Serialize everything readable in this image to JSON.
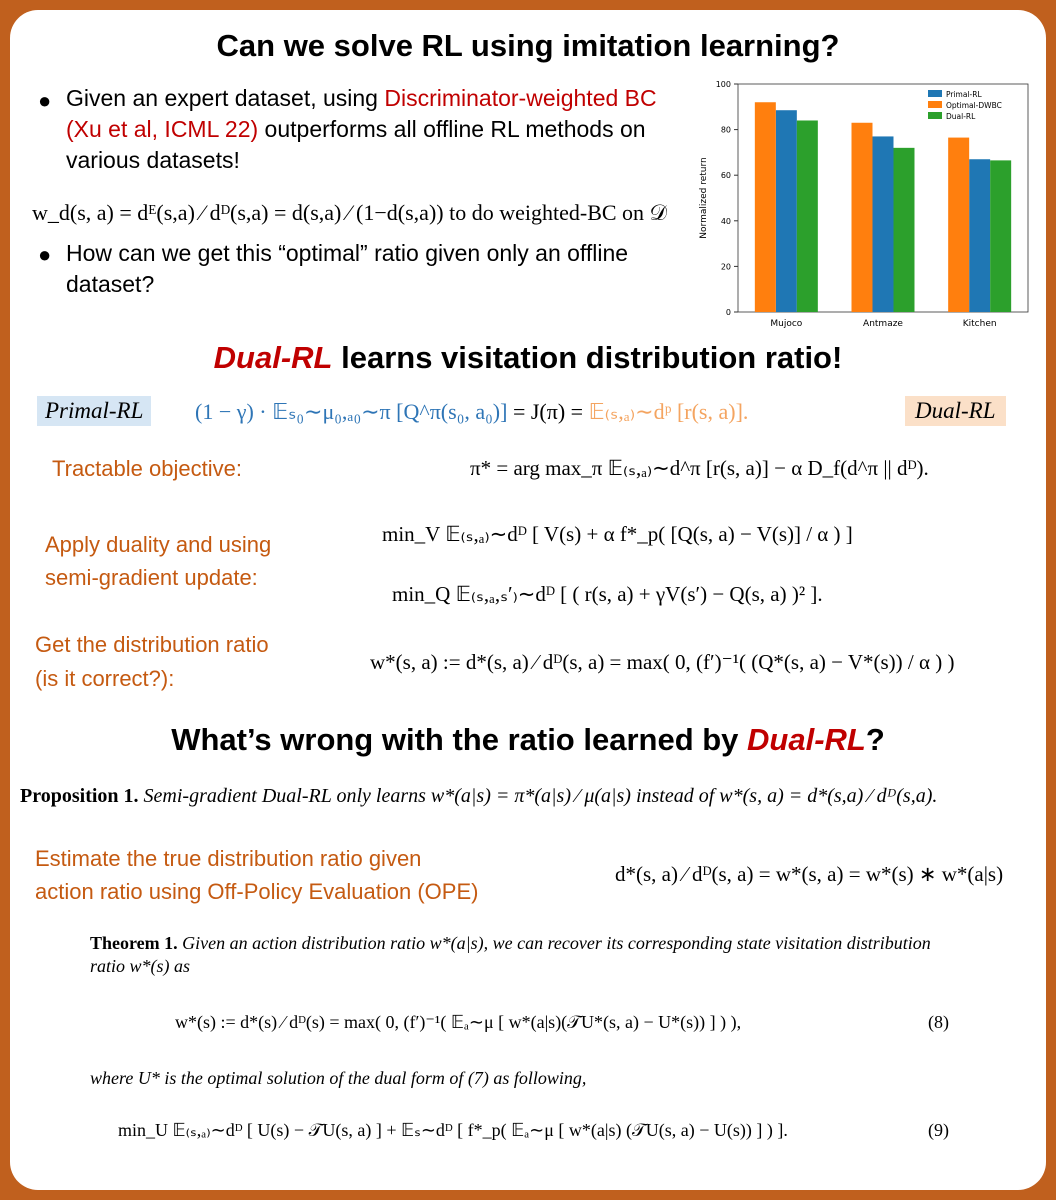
{
  "heading1": "Can we solve RL using imitation learning?",
  "bullet1": {
    "text": "Given an expert dataset, using ",
    "highlight": "Discriminator-weighted BC (Xu et al, ICML 22)",
    "rest": " outperforms all offline RL methods on various datasets!"
  },
  "weight_formula": {
    "math": "w_d(s, a) = dᴱ(s,a) ⁄ dᴰ(s,a) = d(s,a) ⁄ (1−d(s,a))",
    "text": " to do weighted-BC on 𝒟"
  },
  "bullet2": "How can we get this “optimal” ratio given only an offline dataset?",
  "chart_data": {
    "type": "bar",
    "ylabel": "Normalized return",
    "categories": [
      "Mujoco",
      "Antmaze",
      "Kitchen"
    ],
    "series": [
      {
        "name": "Primal-RL",
        "color": "#1f77b4",
        "values": [
          88.5,
          77,
          67
        ]
      },
      {
        "name": "Optimal-DWBC",
        "color": "#ff7f0e",
        "values": [
          92,
          83,
          76.5
        ]
      },
      {
        "name": "Dual-RL",
        "color": "#2ca02c",
        "values": [
          84,
          72,
          66.5
        ]
      }
    ],
    "ylim": [
      0,
      100
    ],
    "yticks": [
      0,
      20,
      40,
      60,
      80,
      100
    ],
    "legend": "upper right"
  },
  "heading2": {
    "highlight": "Dual-RL",
    "text": " learns visitation distribution ratio!"
  },
  "identity": {
    "primal_label": "Primal-RL",
    "primal": "(1 − γ) · 𝔼ₛ₀∼μ₀,ₐ₀∼π [Q^π(s₀, a₀)]",
    "middle": " = J(π) = ",
    "dual": "𝔼₍ₛ,ₐ₎∼dᵖ [r(s, a)].",
    "dual_label": "Dual-RL"
  },
  "tractable": {
    "label": "Tractable objective:",
    "formula": "π* = arg max_π 𝔼₍ₛ,ₐ₎∼d^π [r(s, a)] − α D_f(d^π || dᴰ)."
  },
  "duality": {
    "label": [
      "Apply duality and using",
      "semi-gradient update:"
    ],
    "formulas": [
      "min_V 𝔼₍ₛ,ₐ₎∼dᴰ [ V(s) + α f*_p( [Q(s, a) − V(s)] / α ) ]",
      "min_Q 𝔼₍ₛ,ₐ,ₛ′₎∼dᴰ [ ( r(s, a) + γV(s′) − Q(s, a) )² ]."
    ]
  },
  "ratio": {
    "label": [
      "Get the distribution ratio",
      "(is it correct?):"
    ],
    "formula": "w*(s, a) := d*(s, a) ⁄ dᴰ(s, a) = max( 0, (f′)⁻¹( (Q*(s, a) − V*(s)) / α ) )"
  },
  "heading3": {
    "text": "What’s wrong with the ratio learned by ",
    "highlight": "Dual-RL",
    "end": "?"
  },
  "proposition": {
    "label": "Proposition 1.",
    "text": "Semi-gradient Dual-RL only learns w*(a|s) = π*(a|s) ⁄ μ(a|s) instead of w*(s, a) = d*(s,a) ⁄ dᴰ(s,a)."
  },
  "ope": {
    "label": [
      "Estimate the true distribution ratio given",
      "action ratio using Off-Policy Evaluation (OPE)"
    ],
    "formula": "d*(s, a) ⁄ dᴰ(s, a) = w*(s, a) = w*(s) ∗ w*(a|s)"
  },
  "theorem": {
    "label": "Theorem 1.",
    "text": "Given an action distribution ratio w*(a|s), we can recover its corresponding state visitation distribution ratio w*(s) as",
    "eq8": "w*(s) := d*(s) ⁄ dᴰ(s) = max( 0, (f′)⁻¹( 𝔼ₐ∼μ [ w*(a|s)(𝒯U*(s, a) − U*(s)) ] ) ),",
    "eq8_num": "(8)",
    "where": "where U* is the optimal solution of the dual form of (7) as following,",
    "eq9": "min_U 𝔼₍ₛ,ₐ₎∼dᴰ [ U(s) − 𝒯U(s, a) ] + 𝔼ₛ∼dᴰ [ f*_p( 𝔼ₐ∼μ [ w*(a|s) (𝒯U(s, a) − U(s)) ] ) ].",
    "eq9_num": "(9)"
  }
}
